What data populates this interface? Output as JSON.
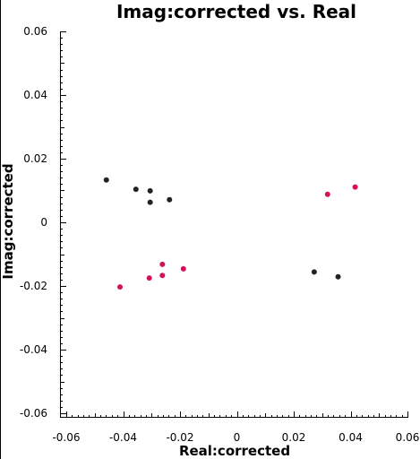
{
  "chart_data": {
    "type": "scatter",
    "title": "Imag:corrected vs. Real",
    "xlabel": "Real:corrected",
    "ylabel": "Imag:corrected",
    "xlim": [
      -0.06,
      0.06
    ],
    "ylim": [
      -0.06,
      0.06
    ],
    "x_ticks": [
      -0.06,
      -0.04,
      -0.02,
      0,
      0.02,
      0.04,
      0.06
    ],
    "x_tick_labels": [
      "-0.06",
      "-0.04",
      "-0.02",
      "0",
      "0.02",
      "0.04",
      "0.06"
    ],
    "y_ticks": [
      0.06,
      0.04,
      0.02,
      0,
      -0.02,
      -0.04,
      -0.06
    ],
    "y_tick_labels": [
      "0.06",
      "0.04",
      "0.02",
      "0",
      "-0.02",
      "-0.04",
      "-0.06"
    ],
    "grid": false,
    "series": [
      {
        "color": "#222222",
        "points": [
          {
            "x": -0.0459,
            "y": 0.0133
          },
          {
            "x": -0.0355,
            "y": 0.0104
          },
          {
            "x": -0.0305,
            "y": 0.0099
          },
          {
            "x": -0.0305,
            "y": 0.0063
          },
          {
            "x": -0.0237,
            "y": 0.0071
          },
          {
            "x": 0.0272,
            "y": -0.0156
          },
          {
            "x": 0.0356,
            "y": -0.0171
          }
        ]
      },
      {
        "color": "#d4105a",
        "points": [
          {
            "x": -0.0411,
            "y": -0.0203
          },
          {
            "x": -0.0308,
            "y": -0.0175
          },
          {
            "x": -0.0262,
            "y": -0.0132
          },
          {
            "x": -0.0262,
            "y": -0.0167
          },
          {
            "x": -0.0188,
            "y": -0.0146
          },
          {
            "x": 0.0319,
            "y": 0.0088
          },
          {
            "x": 0.0416,
            "y": 0.0111
          }
        ]
      }
    ]
  }
}
